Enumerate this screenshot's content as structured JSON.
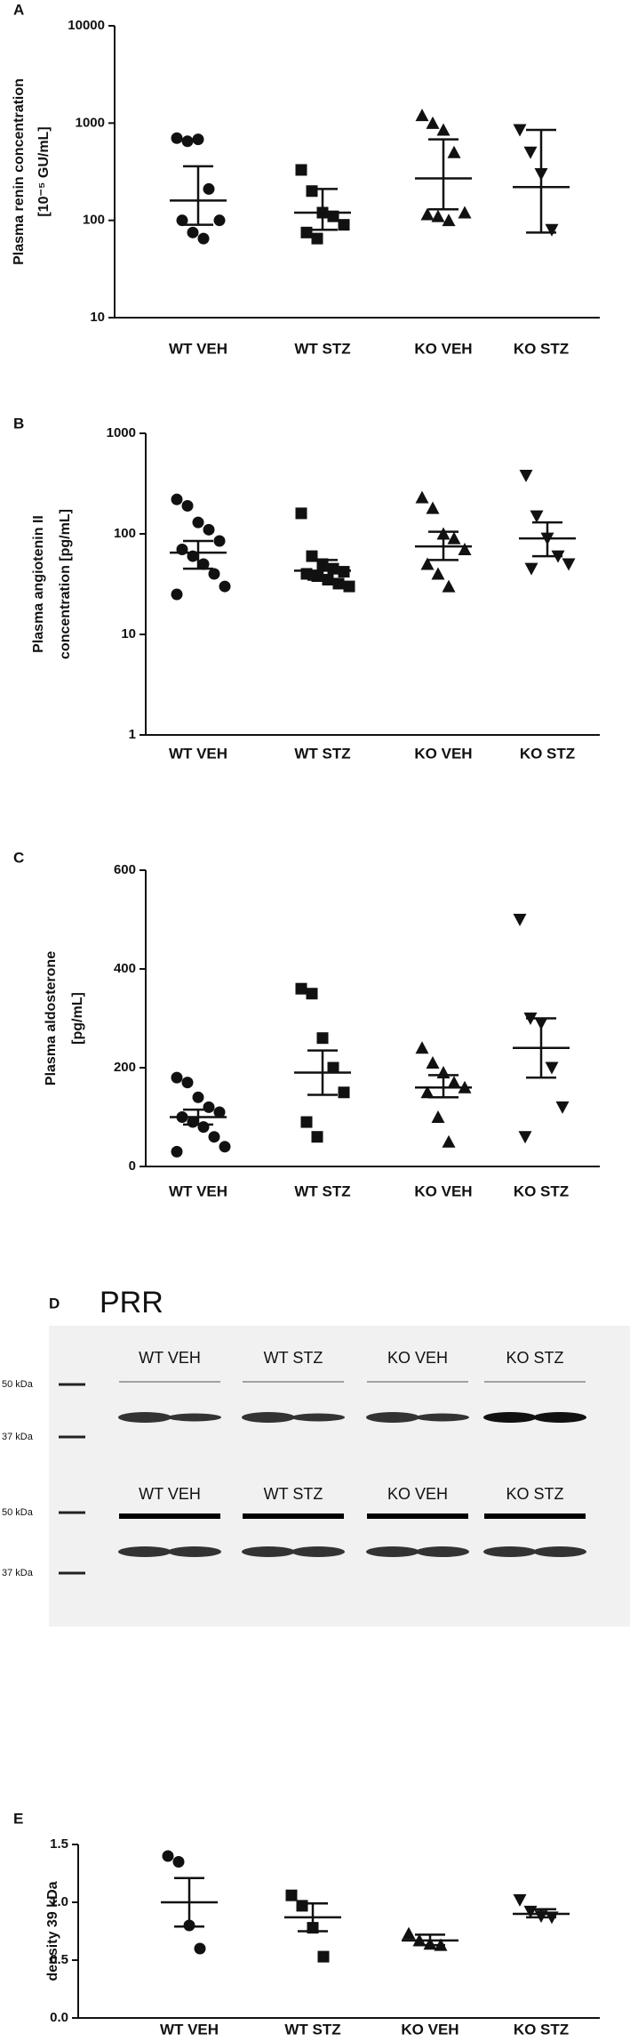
{
  "chart_data": [
    {
      "type": "dot",
      "panel_label": "A",
      "ylabel": [
        "Plasma renin concentration",
        "[10⁻⁵ GU/mL]"
      ],
      "log": true,
      "ylim": [
        10,
        10000
      ],
      "yticks": [
        10,
        100,
        1000,
        10000
      ],
      "color": "#111111",
      "categories": [
        "WT VEH",
        "WT STZ",
        "KO VEH",
        "KO STZ"
      ],
      "markers": [
        "circle",
        "square",
        "triangle",
        "triangle-down"
      ],
      "points": [
        [
          700,
          650,
          680,
          210,
          100,
          100,
          75,
          65
        ],
        [
          330,
          200,
          120,
          110,
          90,
          75,
          65
        ],
        [
          1200,
          1000,
          850,
          500,
          120,
          115,
          110,
          100
        ],
        [
          850,
          500,
          300,
          80
        ]
      ],
      "means": [
        160,
        120,
        270,
        220
      ],
      "err_low": [
        90,
        80,
        130,
        75
      ],
      "err_high": [
        360,
        210,
        680,
        850
      ]
    },
    {
      "type": "dot",
      "panel_label": "B",
      "ylabel": [
        "Plasma angiotenin II",
        "concentration [pg/mL]"
      ],
      "log": true,
      "ylim": [
        1,
        1000
      ],
      "yticks": [
        1,
        10,
        100,
        1000
      ],
      "color": "#111111",
      "categories": [
        "WT VEH",
        "WT STZ",
        "KO VEH",
        "KO STZ"
      ],
      "markers": [
        "circle",
        "square",
        "triangle",
        "triangle-down"
      ],
      "points": [
        [
          220,
          190,
          130,
          110,
          85,
          70,
          60,
          50,
          40,
          30,
          25
        ],
        [
          160,
          60,
          50,
          45,
          42,
          40,
          38,
          35,
          32,
          30
        ],
        [
          230,
          180,
          100,
          90,
          70,
          50,
          40,
          30
        ],
        [
          380,
          150,
          90,
          60,
          50,
          45
        ]
      ],
      "means": [
        65,
        43,
        75,
        90
      ],
      "err_low": [
        45,
        35,
        55,
        60
      ],
      "err_high": [
        85,
        55,
        105,
        130
      ]
    },
    {
      "type": "dot",
      "panel_label": "C",
      "ylabel": [
        "Plasma aldosterone",
        "[pg/mL]"
      ],
      "log": false,
      "ylim": [
        0,
        600
      ],
      "yticks": [
        0,
        200,
        400,
        600
      ],
      "color": "#111111",
      "categories": [
        "WT VEH",
        "WT STZ",
        "KO VEH",
        "KO STZ"
      ],
      "markers": [
        "circle",
        "square",
        "triangle",
        "triangle-down"
      ],
      "points": [
        [
          180,
          170,
          140,
          120,
          110,
          100,
          90,
          80,
          60,
          40,
          30
        ],
        [
          360,
          350,
          260,
          200,
          150,
          90,
          60
        ],
        [
          240,
          210,
          190,
          170,
          160,
          150,
          100,
          50
        ],
        [
          500,
          300,
          290,
          200,
          120,
          60
        ]
      ],
      "means": [
        100,
        190,
        160,
        240
      ],
      "err_low": [
        85,
        145,
        140,
        180
      ],
      "err_high": [
        115,
        235,
        185,
        300
      ]
    },
    {
      "type": "dot",
      "panel_label": "E",
      "ylabel": [
        "density 39 kDa"
      ],
      "log": false,
      "ylim": [
        0,
        1.5
      ],
      "yticks": [
        {
          "value": 0,
          "label": "0.0"
        },
        {
          "value": 0.5,
          "label": "0.5"
        },
        {
          "value": 1,
          "label": "1.0"
        },
        {
          "value": 1.5,
          "label": "1.5"
        }
      ],
      "color": "#111111",
      "categories": [
        "WT VEH",
        "WT STZ",
        "KO VEH",
        "KO STZ"
      ],
      "markers": [
        "circle",
        "square",
        "triangle",
        "triangle-down"
      ],
      "points": [
        [
          1.4,
          1.35,
          0.8,
          0.6
        ],
        [
          1.06,
          0.97,
          0.78,
          0.53
        ],
        [
          0.73,
          0.67,
          0.64,
          0.63
        ],
        [
          1.02,
          0.92,
          0.88,
          0.87
        ]
      ],
      "means": [
        1.0,
        0.87,
        0.67,
        0.9
      ],
      "err_low": [
        0.79,
        0.75,
        0.63,
        0.87
      ],
      "err_high": [
        1.21,
        0.99,
        0.72,
        0.94
      ]
    }
  ],
  "blot": {
    "panel_label": "D",
    "title": "PRR",
    "rows": [
      {
        "lanes": [
          "WT VEH",
          "WT STZ",
          "KO VEH",
          "KO STZ"
        ],
        "size_markers": [
          "50 kDa",
          "37 kDa"
        ]
      },
      {
        "lanes": [
          "WT VEH",
          "WT STZ",
          "KO VEH",
          "KO STZ"
        ],
        "size_markers": [
          "50 kDa",
          "37 kDa"
        ]
      }
    ]
  }
}
